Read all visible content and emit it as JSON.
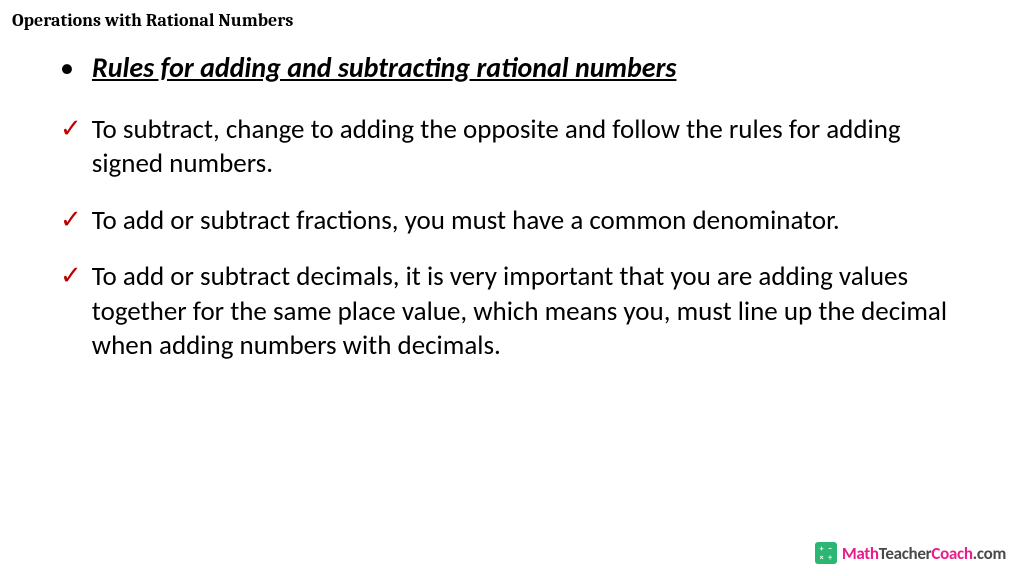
{
  "header": "Operations with Rational Numbers",
  "title": "Rules for adding and subtracting rational numbers",
  "rules": [
    "To subtract, change to adding the opposite and follow the rules for adding signed numbers.",
    "To add or subtract fractions, you must have a common denominator.",
    "To add or subtract decimals, it is very important that you are adding values together for the same place value, which means you, must line up the decimal when adding numbers with decimals."
  ],
  "logo": {
    "symbols": [
      "+",
      "−",
      "×",
      "÷"
    ],
    "math": "Math",
    "teacher": "Teacher",
    "coach": "Coach",
    "domain": ".com"
  },
  "colors": {
    "check": "#c00000",
    "logo_box": "#2bb673",
    "logo_pink": "#e91e8c",
    "logo_gray": "#4a4a4a",
    "text": "#000000",
    "background": "#ffffff"
  }
}
